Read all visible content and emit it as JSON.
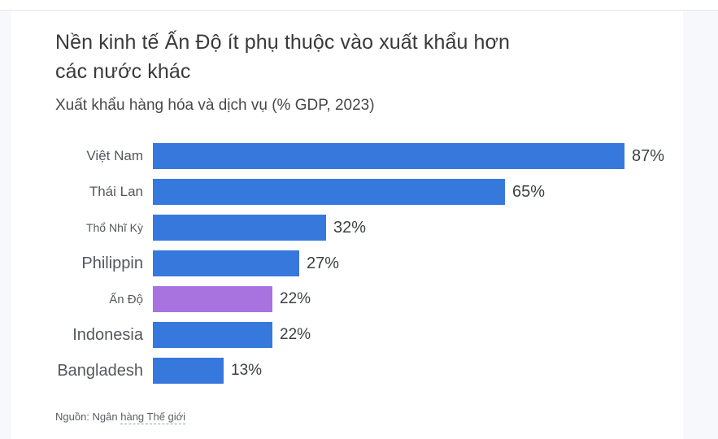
{
  "header": {
    "title_lines": [
      "Nền kinh tế Ấn Độ ít phụ thuộc vào xuất khẩu hơn",
      "các nước khác"
    ],
    "subtitle": "Xuất khẩu hàng hóa và dịch vụ (% GDP, 2023)"
  },
  "chart_data": {
    "type": "bar",
    "orientation": "horizontal",
    "title": "Nền kinh tế Ấn Độ ít phụ thuộc vào xuất khẩu hơn các nước khác",
    "subtitle": "Xuất khẩu hàng hóa và dịch vụ (% GDP, 2023)",
    "categories": [
      "Việt Nam",
      "Thái Lan",
      "Thổ Nhĩ Kỳ",
      "Philippin",
      "Ấn Độ",
      "Indonesia",
      "Bangladesh"
    ],
    "values": [
      87,
      65,
      32,
      27,
      22,
      22,
      13
    ],
    "value_labels": [
      "87%",
      "65%",
      "32%",
      "27%",
      "22%",
      "22%",
      "13%"
    ],
    "xlim": [
      0,
      100
    ],
    "grid": false,
    "legend": false,
    "highlight_index": 4,
    "highlight_category": "Ấn Độ",
    "colors": {
      "bar": "#3778dc",
      "highlight": "#a873de"
    },
    "source": "Nguồn: Ngân hàng Thế giới"
  },
  "source": {
    "prefix": "Nguồn: Ngân ",
    "underlined": "hàng Thế giới"
  }
}
